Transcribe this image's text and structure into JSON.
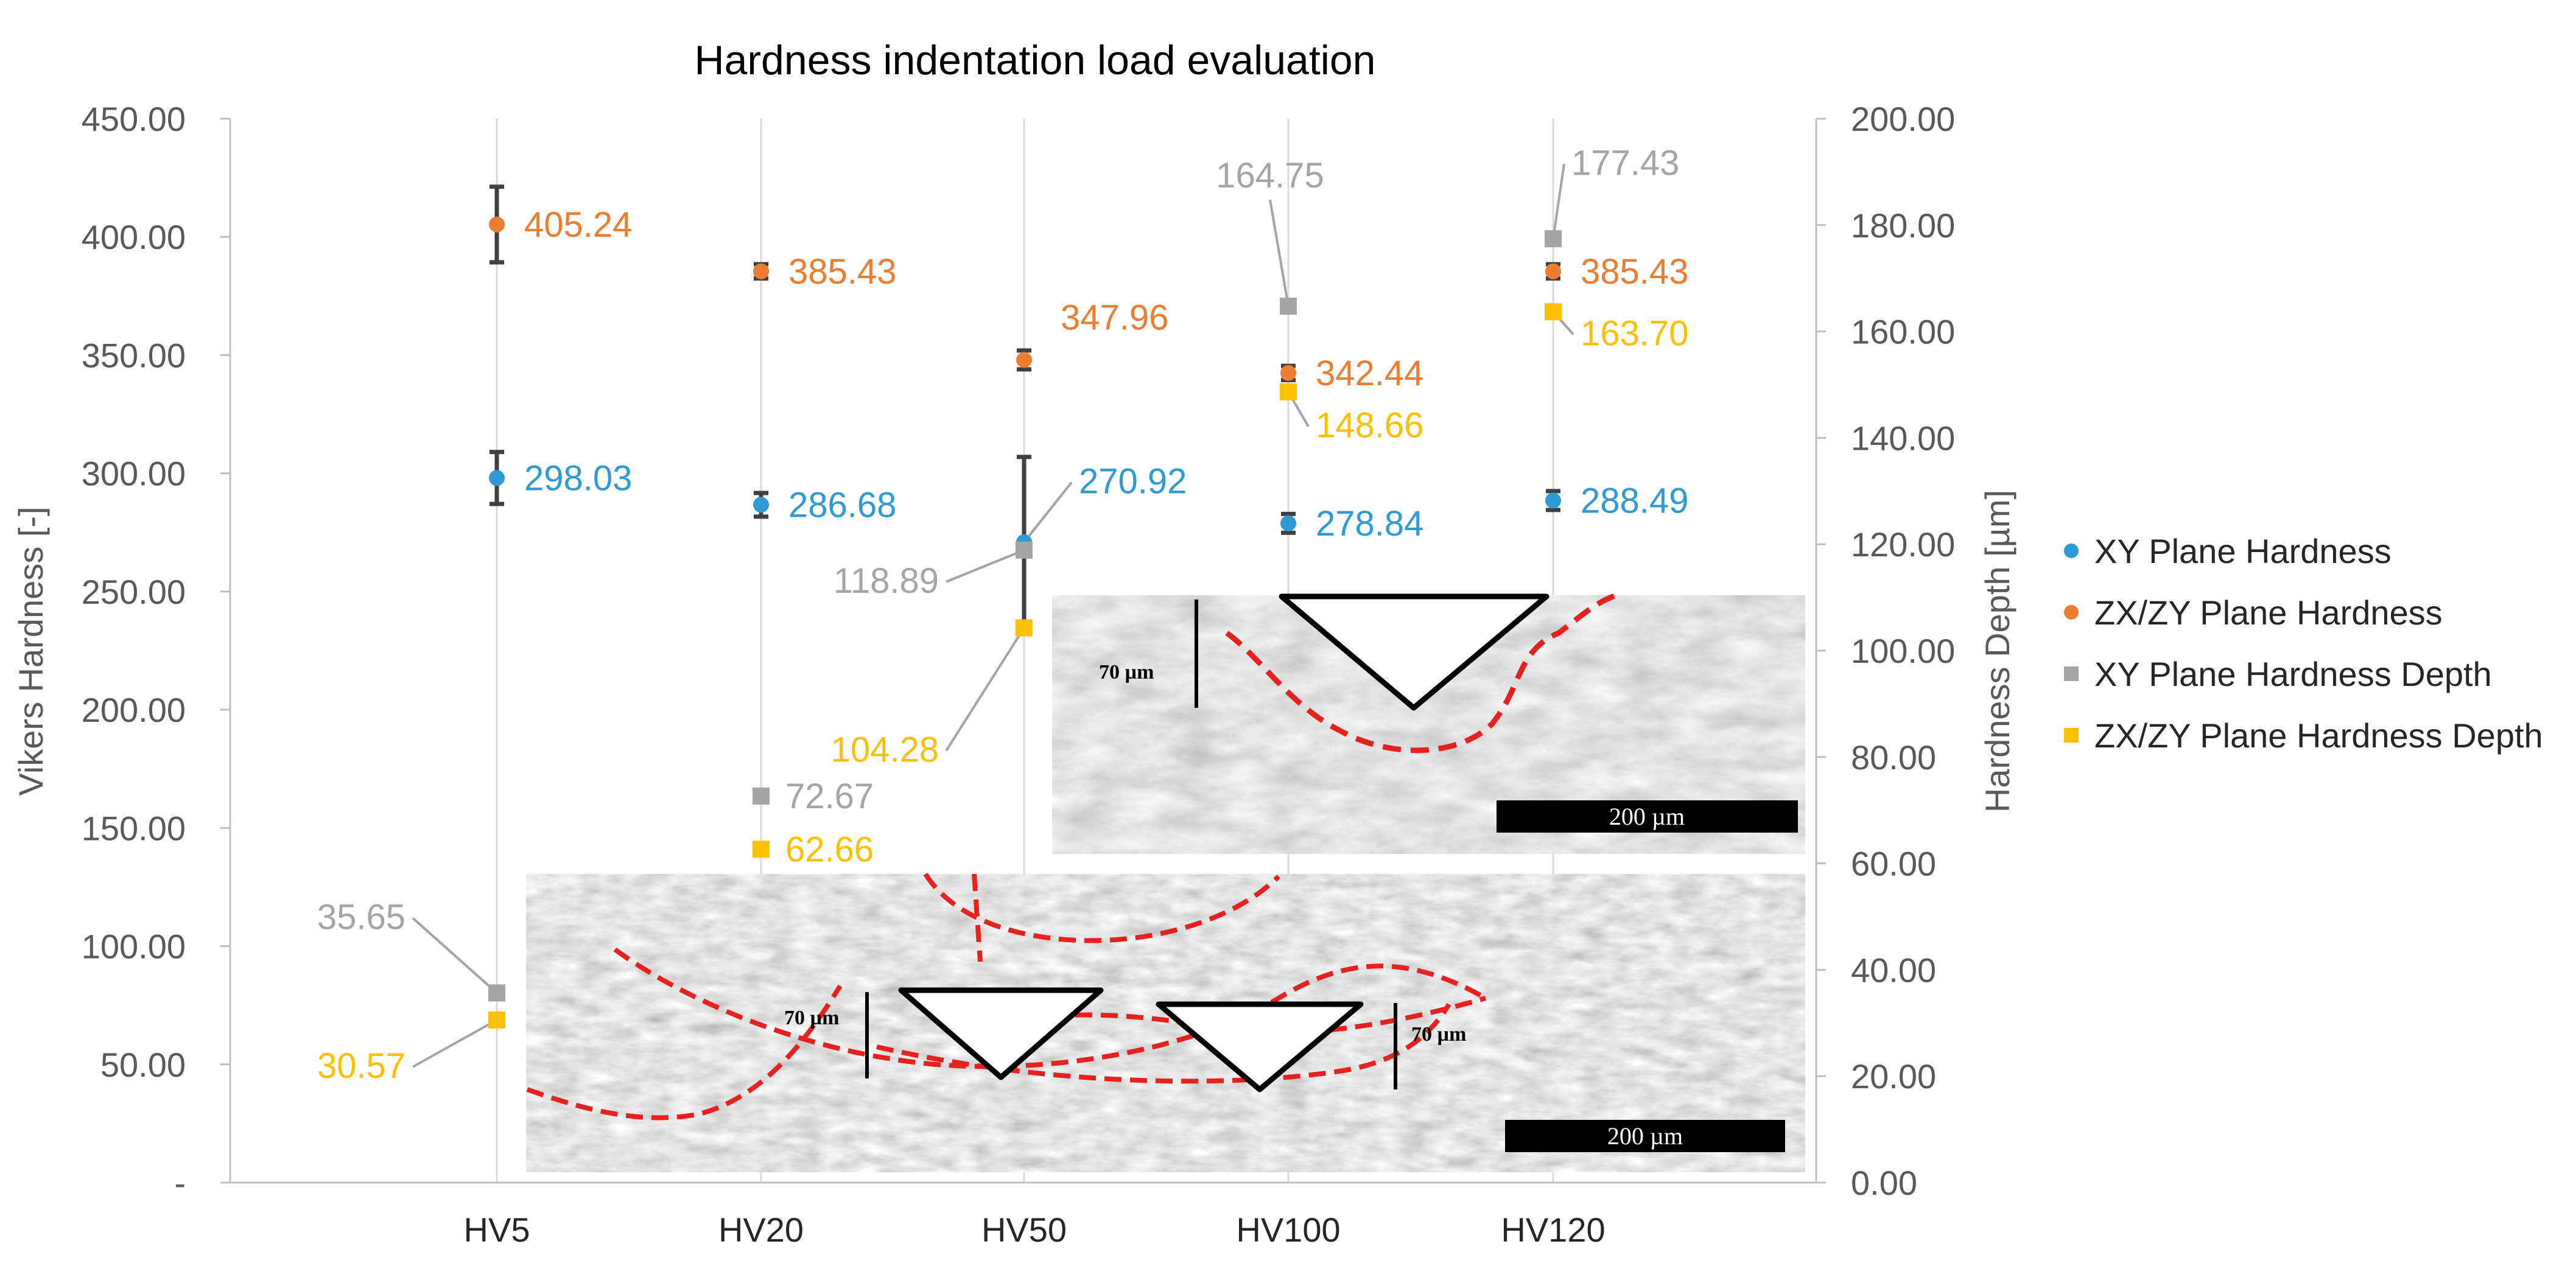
{
  "chart_data": {
    "type": "scatter",
    "title": "Hardness indentation load evaluation",
    "categories": [
      "HV5",
      "HV20",
      "HV50",
      "HV100",
      "HV120"
    ],
    "y_left": {
      "label": "Vikers Hardness [-]",
      "range": [
        0,
        450
      ],
      "ticks": [
        "-",
        "50.00",
        "100.00",
        "150.00",
        "200.00",
        "250.00",
        "300.00",
        "350.00",
        "400.00",
        "450.00"
      ]
    },
    "y_right": {
      "label": "Hardness Depth [µm]",
      "range": [
        0,
        200
      ],
      "ticks": [
        "0.00",
        "20.00",
        "40.00",
        "60.00",
        "80.00",
        "100.00",
        "120.00",
        "140.00",
        "160.00",
        "180.00",
        "200.00"
      ]
    },
    "series": [
      {
        "name": "XY Plane Hardness",
        "axis": "left",
        "marker": "circle",
        "color": "#2E9BD6",
        "values": [
          298.03,
          286.68,
          270.92,
          278.84,
          288.49
        ],
        "labels": [
          "298.03",
          "286.68",
          "270.92",
          "278.84",
          "288.49"
        ],
        "error": [
          11,
          5,
          36,
          4,
          4
        ]
      },
      {
        "name": "ZX/ZY Plane Hardness",
        "axis": "left",
        "marker": "circle",
        "color": "#ED7D31",
        "values": [
          405.24,
          385.43,
          347.96,
          342.44,
          385.43
        ],
        "labels": [
          "405.24",
          "385.43",
          "347.96",
          "342.44",
          "385.43"
        ],
        "error": [
          16,
          3,
          4,
          3,
          3
        ]
      },
      {
        "name": "XY Plane Hardness Depth",
        "axis": "right",
        "marker": "square",
        "color": "#A5A5A5",
        "values": [
          35.65,
          72.67,
          118.89,
          164.75,
          177.43
        ],
        "labels": [
          "35.65",
          "72.67",
          "118.89",
          "164.75",
          "177.43"
        ]
      },
      {
        "name": "ZX/ZY Plane Hardness Depth",
        "axis": "right",
        "marker": "square",
        "color": "#FFC000",
        "values": [
          30.57,
          62.66,
          104.28,
          148.66,
          163.7
        ],
        "labels": [
          "30.57",
          "62.66",
          "104.28",
          "148.66",
          "163.70"
        ]
      }
    ],
    "legend_position": "right",
    "grid": "vertical category lines"
  },
  "insets": [
    {
      "name": "upper-micrograph",
      "depth_label": "70 µm",
      "scale_bar": "200 µm"
    },
    {
      "name": "lower-micrograph",
      "depth_labels": [
        "70 µm",
        "70 µm"
      ],
      "scale_bar": "200 µm"
    }
  ],
  "colors": {
    "grid": "#D9D9D9",
    "axis": "#BFBFBF",
    "error_bar": "#404040",
    "indent_outline": "#000000",
    "melt_pool_line": "#E8201E"
  }
}
